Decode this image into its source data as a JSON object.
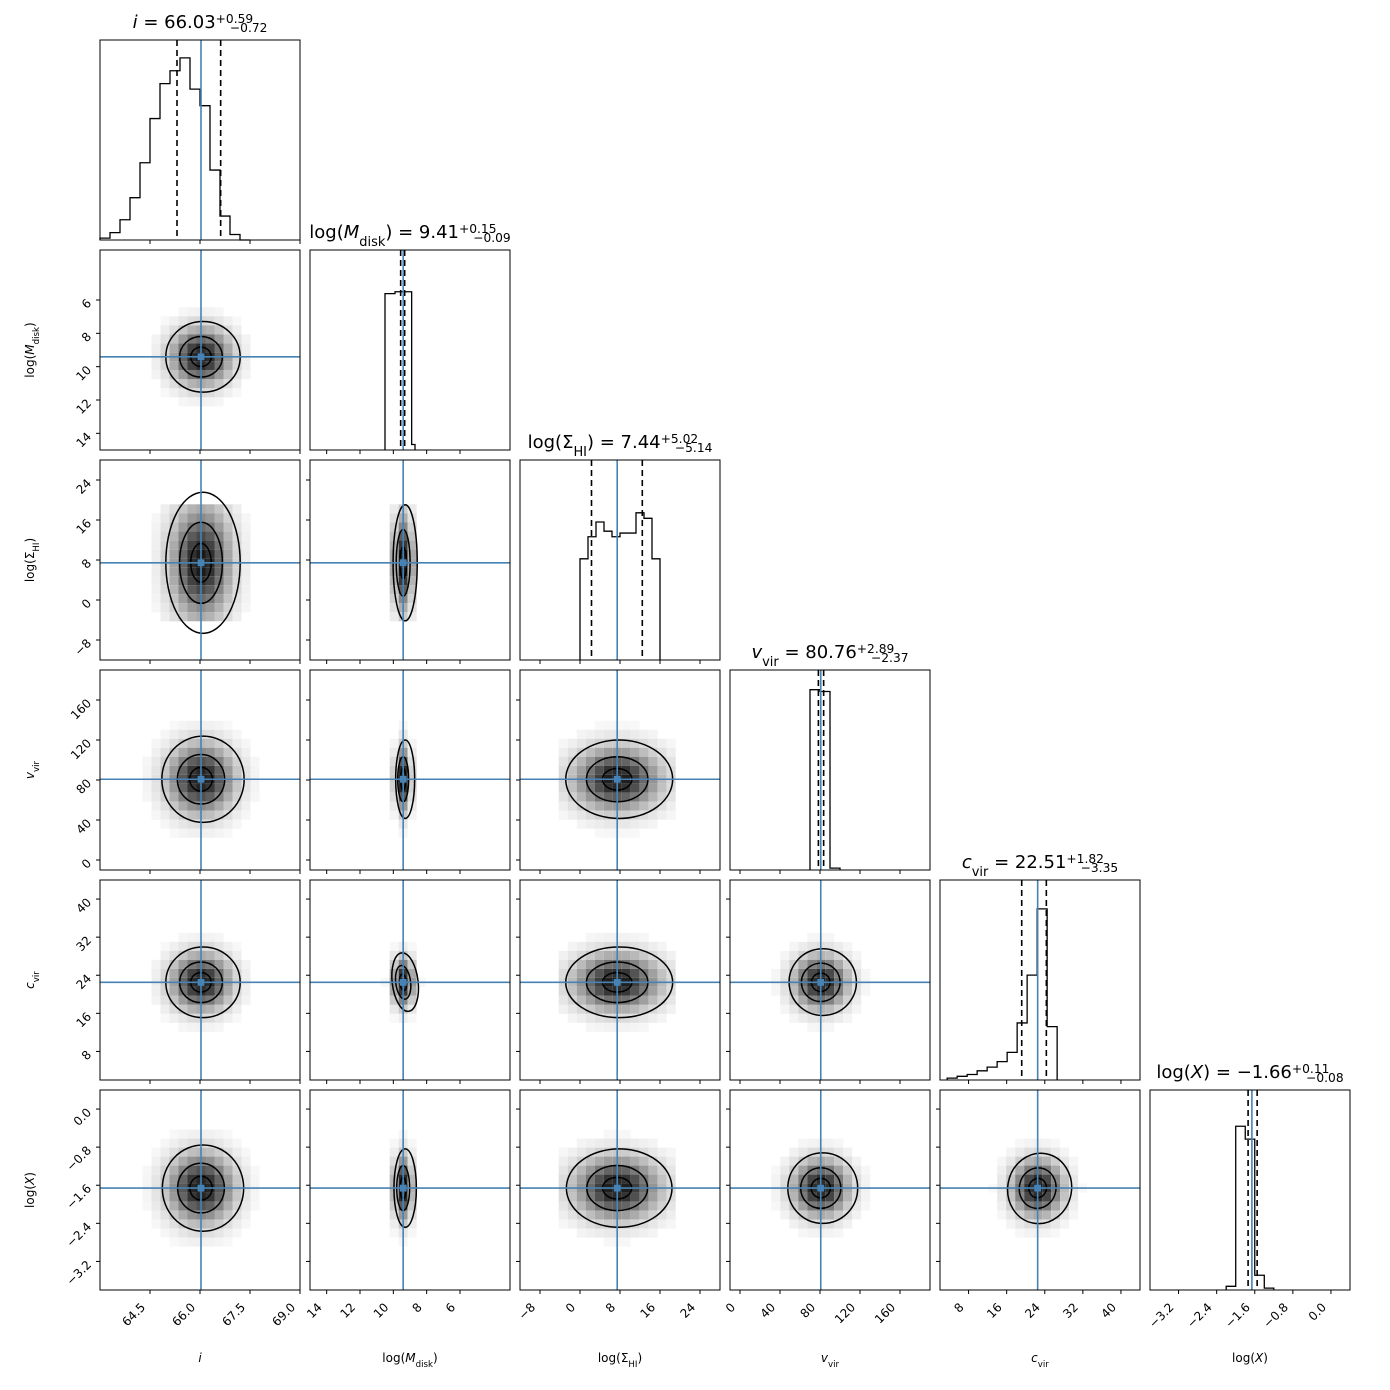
{
  "chart_data": {
    "type": "corner",
    "parameters": [
      {
        "key": "i",
        "label": "i",
        "italic": true,
        "range": [
          63,
          69
        ],
        "ticks": [
          "64.5",
          "66.0",
          "67.5",
          "69.0"
        ],
        "tick_values": [
          64.5,
          66.0,
          67.5,
          69.0
        ],
        "reverse": false,
        "median": 66.03,
        "q16": 65.31,
        "q84": 66.62,
        "title": {
          "lhs": "i",
          "value": "66.03",
          "plus": "+0.59",
          "minus": "−0.72"
        },
        "hist_bins": [
          63.0,
          63.3,
          63.6,
          63.9,
          64.2,
          64.5,
          64.8,
          65.1,
          65.4,
          65.7,
          66.0,
          66.3,
          66.6,
          66.9,
          67.2,
          67.5
        ],
        "hist_heights": [
          0.01,
          0.04,
          0.11,
          0.23,
          0.42,
          0.66,
          0.85,
          0.92,
          0.99,
          0.82,
          0.73,
          0.38,
          0.13,
          0.03,
          0.0
        ]
      },
      {
        "key": "log_mdisk",
        "label": "log(M_disk)",
        "range": [
          15,
          3
        ],
        "ticks": [
          "14",
          "12",
          "10",
          "8",
          "6"
        ],
        "tick_values": [
          14,
          12,
          10,
          8,
          6
        ],
        "reverse": true,
        "median": 9.41,
        "q16": 9.32,
        "q84": 9.56,
        "title": {
          "lhs": "log(M_disk)",
          "value": "9.41",
          "plus": "+0.15",
          "minus": "−0.09"
        },
        "hist_bins": [
          10.5,
          9.9,
          8.9,
          8.7
        ],
        "hist_heights": [
          0.85,
          0.86,
          0.03
        ]
      },
      {
        "key": "log_sigma_hi",
        "label": "log(Σ_HI)",
        "range": [
          -12,
          28
        ],
        "ticks": [
          "−8",
          "0",
          "8",
          "16",
          "24"
        ],
        "tick_values": [
          -8,
          0,
          8,
          16,
          24
        ],
        "reverse": false,
        "median": 7.44,
        "q16": 2.3,
        "q84": 12.46,
        "title": {
          "lhs": "log(Σ_HI)",
          "value": "7.44",
          "plus": "+5.02",
          "minus": "−5.14"
        },
        "hist_bins": [
          0.0,
          1.6,
          3.2,
          4.8,
          6.4,
          8.0,
          9.6,
          11.2,
          12.8,
          14.4,
          16.0
        ],
        "hist_heights": [
          0.55,
          0.67,
          0.75,
          0.7,
          0.67,
          0.69,
          0.69,
          0.8,
          0.77,
          0.55
        ]
      },
      {
        "key": "v_vir",
        "label": "v_vir",
        "range": [
          -10,
          190
        ],
        "ticks": [
          "0",
          "40",
          "80",
          "120",
          "160"
        ],
        "tick_values": [
          0,
          40,
          80,
          120,
          160
        ],
        "reverse": false,
        "median": 80.76,
        "q16": 78.39,
        "q84": 83.65,
        "title": {
          "lhs": "v_vir",
          "value": "80.76",
          "plus": "+2.89",
          "minus": "−2.37"
        },
        "hist_bins": [
          70,
          80,
          90,
          100
        ],
        "hist_heights": [
          0.98,
          0.97,
          0.01
        ]
      },
      {
        "key": "c_vir",
        "label": "c_vir",
        "range": [
          2,
          44
        ],
        "ticks": [
          "8",
          "16",
          "24",
          "32",
          "40"
        ],
        "tick_values": [
          8,
          16,
          24,
          32,
          40
        ],
        "reverse": false,
        "median": 22.51,
        "q16": 19.16,
        "q84": 24.33,
        "title": {
          "lhs": "c_vir",
          "value": "22.51",
          "plus": "+1.82",
          "minus": "−3.35"
        },
        "hist_bins": [
          3.5,
          5.6,
          7.7,
          9.8,
          11.9,
          14.0,
          16.1,
          18.2,
          20.3,
          22.4,
          24.5,
          26.6
        ],
        "hist_heights": [
          0.01,
          0.02,
          0.03,
          0.05,
          0.07,
          0.1,
          0.15,
          0.31,
          0.57,
          0.93,
          0.29
        ]
      },
      {
        "key": "log_x",
        "label": "log(X)",
        "range": [
          -3.8,
          0.4
        ],
        "ticks": [
          "−3.2",
          "−2.4",
          "−1.6",
          "−0.8",
          "0.0"
        ],
        "tick_values": [
          -3.2,
          -2.4,
          -1.6,
          -0.8,
          0.0
        ],
        "reverse": false,
        "median": -1.66,
        "q16": -1.74,
        "q84": -1.55,
        "title": {
          "lhs": "log(X)",
          "value": "−1.66",
          "plus": "+0.11",
          "minus": "−0.08"
        },
        "hist_bins": [
          -2.2,
          -2.0,
          -1.8,
          -1.6,
          -1.4,
          -1.2
        ],
        "hist_heights": [
          0.02,
          0.89,
          0.82,
          0.08,
          0.01
        ]
      }
    ],
    "truth_values": [
      66.03,
      9.41,
      7.44,
      80.76,
      22.51,
      -1.66
    ],
    "contour_widths": [
      [
        [
          0.75,
          0.9
        ]
      ],
      [
        [
          0.75,
          0.9
        ],
        [
          0.28,
          0.74
        ]
      ],
      [
        [
          0.83,
          1.1
        ],
        [
          0.22,
          1.0
        ],
        [
          0.8,
          1.0
        ]
      ],
      [
        [
          0.75,
          0.9
        ],
        [
          0.3,
          0.75
        ],
        [
          0.8,
          0.9
        ],
        [
          0.78,
          0.85
        ]
      ],
      [
        [
          0.82,
          1.1
        ],
        [
          0.26,
          1.0
        ],
        [
          0.79,
          1.0
        ],
        [
          0.81,
          0.9
        ],
        [
          0.74,
          0.9
        ]
      ]
    ],
    "contour_levels": [
      0.393,
      0.865
    ],
    "colors": {
      "truth": "#4682b4",
      "lines": "#000000"
    }
  }
}
